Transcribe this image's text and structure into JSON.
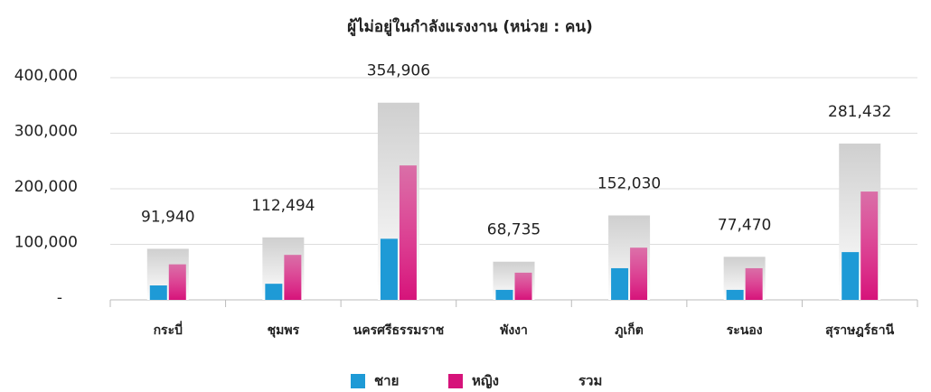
{
  "chart_data": {
    "type": "bar",
    "title": "ผู้ไม่อยู่ในกำลังแรงงาน (หน่วย : คน)",
    "categories": [
      "กระบี่",
      "ชุมพร",
      "นครศรีธรรมราช",
      "พังงา",
      "ภูเก็ต",
      "ระนอง",
      "สุราษฎร์ธานี"
    ],
    "series": [
      {
        "name": "ชาย",
        "color": "#1e9ad6",
        "values": [
          26000,
          29000,
          110000,
          18000,
          57000,
          18000,
          86000
        ]
      },
      {
        "name": "หญิง",
        "color": "#d6137a",
        "values": [
          64000,
          81000,
          242000,
          49000,
          94000,
          57000,
          195000
        ]
      },
      {
        "name": "รวม",
        "color": "#cfcfcf",
        "values": [
          91940,
          112494,
          354906,
          68735,
          152030,
          77470,
          281432
        ],
        "value_labels": [
          "91,940",
          "112,494",
          "354,906",
          "68,735",
          "152,030",
          "77,470",
          "281,432"
        ]
      }
    ],
    "ylim": [
      0,
      400000
    ],
    "yticks": [
      {
        "value": 0,
        "label": "-"
      },
      {
        "value": 100000,
        "label": "100,000"
      },
      {
        "value": 200000,
        "label": "200,000"
      },
      {
        "value": 300000,
        "label": "300,000"
      },
      {
        "value": 400000,
        "label": "400,000"
      }
    ],
    "grid": true,
    "legend": "bottom"
  }
}
